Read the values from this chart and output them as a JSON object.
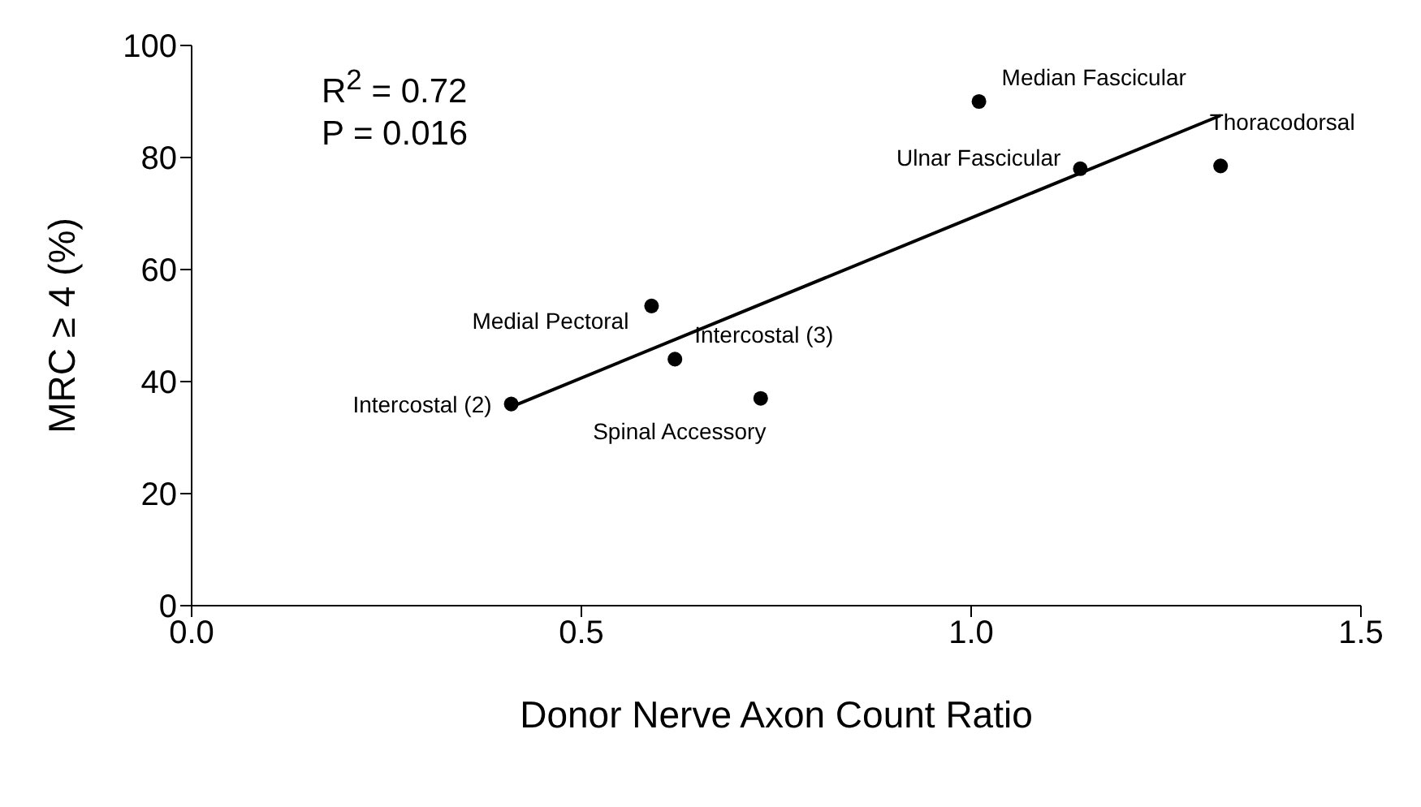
{
  "chart_data": {
    "type": "scatter",
    "xlabel": "Donor Nerve Axon Count Ratio",
    "ylabel": "MRC ≥ 4 (%)",
    "xlim": [
      0,
      1.5
    ],
    "xticks": [
      {
        "value": 0,
        "label": "0.0"
      },
      {
        "value": 0.5,
        "label": "0.5"
      },
      {
        "value": 1,
        "label": "1.0"
      },
      {
        "value": 1.5,
        "label": "1.5"
      }
    ],
    "ylim": [
      0,
      100
    ],
    "yticks": [
      0,
      20,
      40,
      60,
      80,
      100
    ],
    "series": [
      {
        "color": "#000000",
        "marker": "circle",
        "x": [
          0.41,
          0.59,
          0.62,
          0.73,
          1.01,
          1.14,
          1.32
        ],
        "values": [
          36,
          53.5,
          44,
          37,
          90,
          78,
          78.5
        ]
      },
      {
        "type": "line",
        "color": "#000000",
        "marker": "none",
        "line_style": "solid",
        "x": [
          0.41,
          1.32
        ],
        "values": [
          35.5,
          87.5
        ]
      }
    ],
    "annotations": [
      "R$^{2}$ = 0.72",
      "P = 0.016",
      {
        "text": "Intercostal (2)",
        "x": 0.41,
        "y": 36
      },
      {
        "text": "Medial Pectoral",
        "x": 0.59,
        "y": 53.5
      },
      {
        "text": "Intercostal (3)",
        "x": 0.62,
        "y": 44
      },
      {
        "text": "Spinal Accessory",
        "x": 0.73,
        "y": 37
      },
      {
        "text": "Median Fascicular",
        "x": 1.01,
        "y": 90
      },
      {
        "text": "Ulnar Fascicular",
        "x": 1.14,
        "y": 78
      },
      {
        "text": "Thoracodorsal",
        "x": 1.32,
        "y": 78.5
      }
    ]
  }
}
